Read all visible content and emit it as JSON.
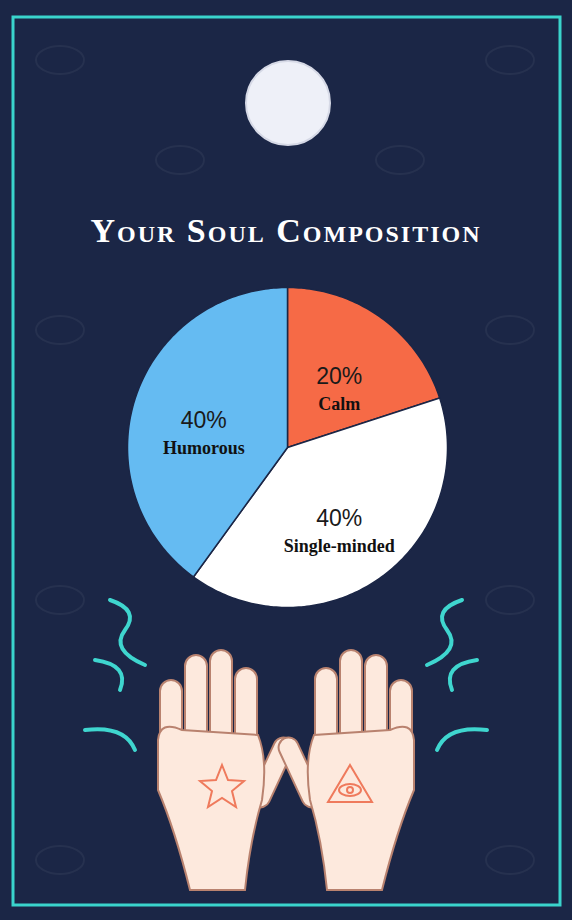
{
  "chart_data": {
    "type": "pie",
    "title": "Your Soul Composition",
    "categories": [
      "Calm",
      "Single-minded",
      "Humorous"
    ],
    "values": [
      20,
      40,
      40
    ],
    "value_labels": [
      "20%",
      "40%",
      "40%"
    ],
    "colors": [
      "#f66a46",
      "#ffffff",
      "#65bbf2"
    ],
    "data_labels": true
  }
}
